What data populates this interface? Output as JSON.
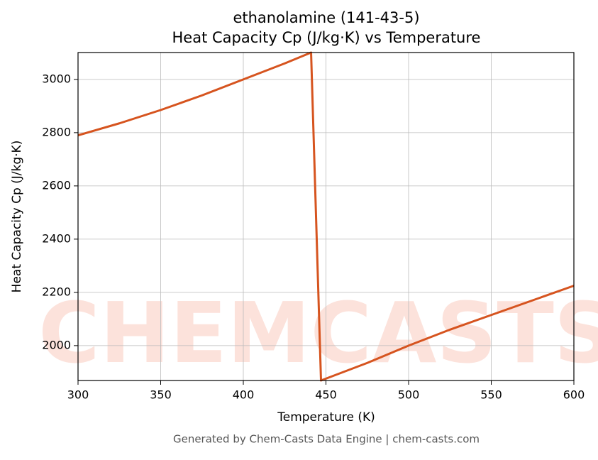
{
  "chart_data": {
    "type": "line",
    "title": "ethanolamine (141-43-5)",
    "subtitle": "Heat Capacity Cp (J/kg·K) vs Temperature",
    "x_label": "Temperature (K)",
    "y_label": "Heat Capacity Cp (J/kg·K)",
    "footer": "Generated by Chem-Casts Data Engine | chem-casts.com",
    "watermark": "CHEMCASTS",
    "x": [
      300,
      325,
      350,
      375,
      400,
      425,
      441,
      447,
      475,
      500,
      525,
      550,
      575,
      600
    ],
    "series": [
      {
        "name": "Cp",
        "color": "#d6541f",
        "values": [
          2790,
          2835,
          2885,
          2940,
          3000,
          3060,
          3101,
          1869,
          1935,
          2000,
          2060,
          2115,
          2170,
          2225
        ]
      }
    ],
    "xlim": [
      300,
      600
    ],
    "xticks": [
      300,
      350,
      400,
      450,
      500,
      550,
      600
    ],
    "ylim": [
      1869,
      3101
    ],
    "yticks": [
      2000,
      2200,
      2400,
      2600,
      2800,
      3000
    ],
    "grid": true
  }
}
